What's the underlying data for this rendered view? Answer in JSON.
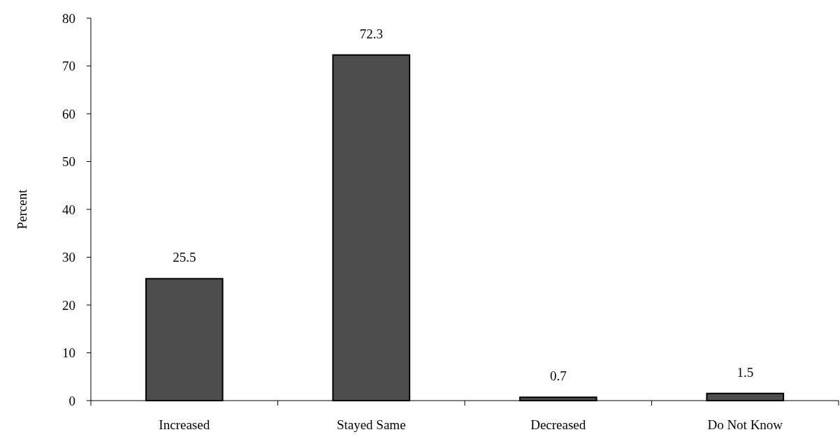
{
  "chart_data": {
    "type": "bar",
    "ylabel": "Percent",
    "categories": [
      "Increased",
      "Stayed Same",
      "Decreased",
      "Do Not Know"
    ],
    "values": [
      25.5,
      72.3,
      0.7,
      1.5
    ],
    "color": "#4d4d4d",
    "ylim": [
      0,
      80
    ],
    "yticks": [
      0,
      10,
      20,
      30,
      40,
      50,
      60,
      70,
      80
    ],
    "data_labels": true
  }
}
